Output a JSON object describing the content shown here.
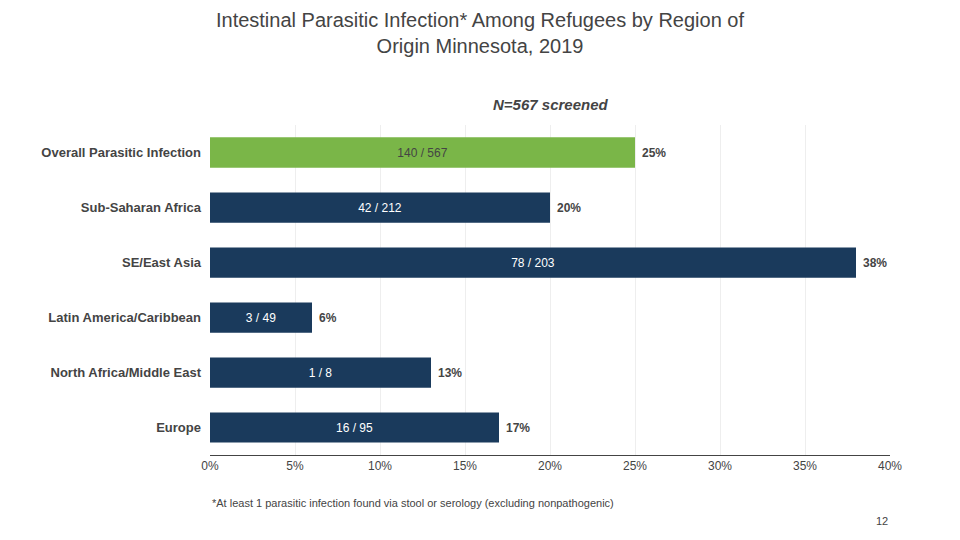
{
  "chart_data": {
    "type": "bar",
    "orientation": "horizontal",
    "title": "Intestinal Parasitic Infection* Among Refugees by Region of\nOrigin Minnesota, 2019",
    "subtitle": "N=567 screened",
    "categories": [
      "Overall Parasitic Infection",
      "Sub-Saharan Africa",
      "SE/East Asia",
      "Latin America/Caribbean",
      "North Africa/Middle East",
      "Europe"
    ],
    "values": [
      25,
      20,
      38,
      6,
      13,
      17
    ],
    "value_labels": [
      "25%",
      "20%",
      "38%",
      "6%",
      "13%",
      "17%"
    ],
    "inner_labels": [
      "140 / 567",
      "42 / 212",
      "78 / 203",
      "3 / 49",
      "1 / 8",
      "16 / 95"
    ],
    "data_labels": true,
    "colors": [
      "#7ab648",
      "#1a3a5c",
      "#1a3a5c",
      "#1a3a5c",
      "#1a3a5c",
      "#1a3a5c"
    ],
    "xlim": [
      0,
      40
    ],
    "xticks": [
      {
        "value": 0,
        "label": "0%"
      },
      {
        "value": 5,
        "label": "5%"
      },
      {
        "value": 10,
        "label": "10%"
      },
      {
        "value": 15,
        "label": "15%"
      },
      {
        "value": 20,
        "label": "20%"
      },
      {
        "value": 25,
        "label": "25%"
      },
      {
        "value": 30,
        "label": "30%"
      },
      {
        "value": 35,
        "label": "35%"
      },
      {
        "value": 40,
        "label": "40%"
      }
    ],
    "grid": true,
    "annotations": [
      "*At least 1 parasitic infection found via stool or serology (excluding nonpathogenic)",
      "12"
    ]
  }
}
